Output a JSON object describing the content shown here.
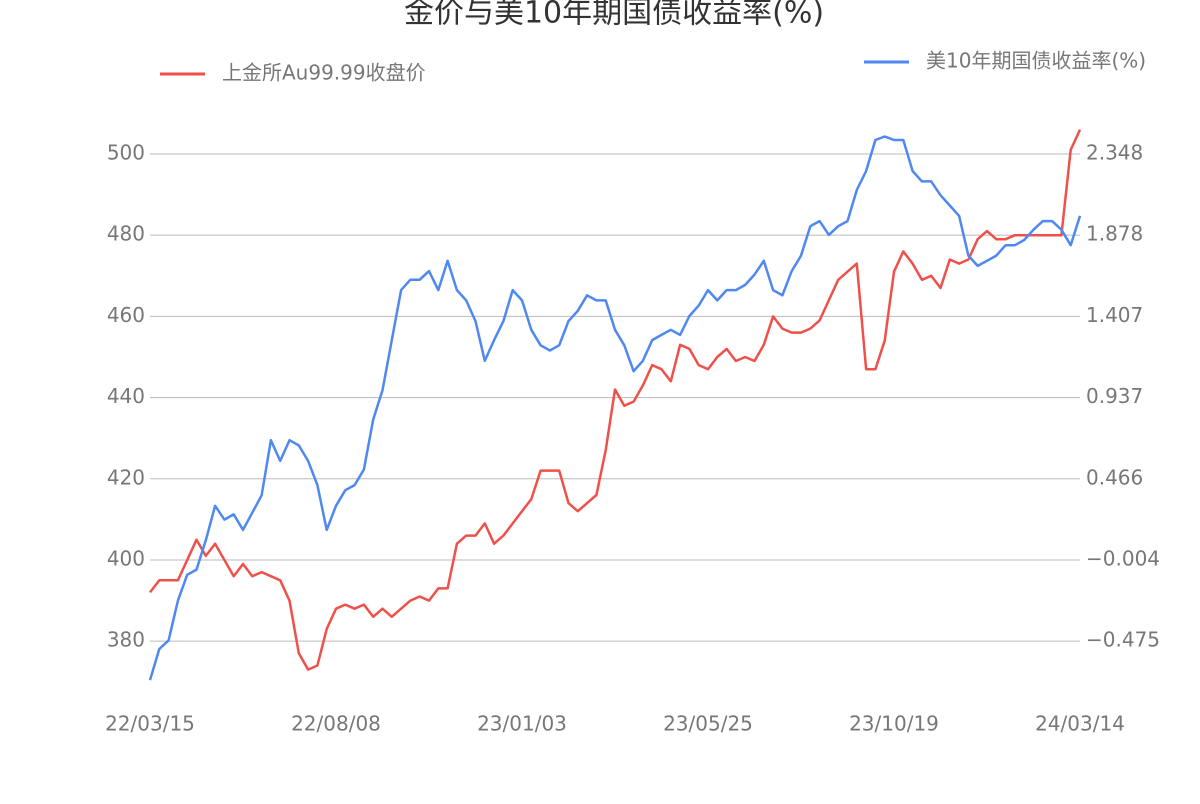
{
  "chart_data": {
    "type": "line",
    "title": "金价与美10年期国债收益率(%)",
    "categories": [
      "22/03/15",
      null,
      null,
      null,
      null,
      null,
      null,
      null,
      null,
      null,
      null,
      null,
      null,
      null,
      null,
      null,
      null,
      null,
      null,
      null,
      "22/08/08",
      null,
      null,
      null,
      null,
      null,
      null,
      null,
      null,
      null,
      null,
      null,
      null,
      null,
      null,
      null,
      null,
      null,
      null,
      null,
      "23/01/03",
      null,
      null,
      null,
      null,
      null,
      null,
      null,
      null,
      null,
      null,
      null,
      null,
      null,
      null,
      null,
      null,
      null,
      null,
      null,
      "23/05/25",
      null,
      null,
      null,
      null,
      null,
      null,
      null,
      null,
      null,
      null,
      null,
      null,
      null,
      null,
      null,
      null,
      null,
      null,
      null,
      "23/10/19",
      null,
      null,
      null,
      null,
      null,
      null,
      null,
      null,
      null,
      null,
      null,
      null,
      null,
      null,
      null,
      null,
      null,
      null,
      null,
      "24/03/14"
    ],
    "series": [
      {
        "name": "上金所Au99.99收盘价",
        "color": "#f0504a",
        "axis": "y",
        "values": [
          392,
          395,
          395,
          395,
          400,
          405,
          401,
          404,
          400,
          396,
          399,
          396,
          397,
          396,
          395,
          390,
          377,
          373,
          374,
          383,
          388,
          389,
          388,
          389,
          386,
          388,
          386,
          388,
          390,
          391,
          390,
          393,
          393,
          404,
          406,
          406,
          409,
          404,
          406,
          409,
          412,
          415,
          422,
          422,
          422,
          414,
          412,
          414,
          416,
          427,
          442,
          438,
          439,
          443,
          448,
          447,
          444,
          453,
          452,
          448,
          447,
          450,
          452,
          449,
          450,
          449,
          453,
          460,
          457,
          456,
          456,
          457,
          459,
          464,
          469,
          471,
          473,
          447,
          447,
          454,
          471,
          476,
          473,
          469,
          470,
          467,
          474,
          473,
          474,
          479,
          481,
          479,
          479,
          480,
          480,
          480,
          480,
          480,
          480,
          501,
          506
        ]
      },
      {
        "name": "美10年期国债收益率(%)",
        "color": "#4f88f0",
        "axis": "y2",
        "values": [
          -0.7,
          -0.52,
          -0.47,
          -0.24,
          -0.09,
          -0.06,
          0.11,
          0.31,
          0.23,
          0.26,
          0.17,
          0.27,
          0.37,
          0.69,
          0.57,
          0.69,
          0.66,
          0.57,
          0.43,
          0.17,
          0.31,
          0.4,
          0.43,
          0.52,
          0.81,
          0.98,
          1.27,
          1.56,
          1.62,
          1.62,
          1.67,
          1.56,
          1.73,
          1.56,
          1.5,
          1.38,
          1.15,
          1.27,
          1.38,
          1.56,
          1.5,
          1.33,
          1.24,
          1.21,
          1.24,
          1.38,
          1.44,
          1.53,
          1.5,
          1.5,
          1.33,
          1.24,
          1.09,
          1.15,
          1.27,
          1.3,
          1.33,
          1.3,
          1.41,
          1.47,
          1.56,
          1.5,
          1.56,
          1.56,
          1.59,
          1.65,
          1.73,
          1.56,
          1.53,
          1.67,
          1.76,
          1.93,
          1.96,
          1.88,
          1.93,
          1.96,
          2.14,
          2.25,
          2.43,
          2.45,
          2.43,
          2.43,
          2.25,
          2.19,
          2.19,
          2.11,
          2.05,
          1.99,
          1.76,
          1.7,
          1.73,
          1.76,
          1.82,
          1.82,
          1.85,
          1.91,
          1.96,
          1.96,
          1.91,
          1.82,
          1.99
        ]
      }
    ],
    "ylim": [
      366,
      508
    ],
    "yticks": [
      380,
      400,
      420,
      440,
      460,
      480,
      500
    ],
    "y2lim": [
      -0.804,
      2.537
    ],
    "y2ticks": [
      {
        "value": -0.475,
        "label": "−0.475"
      },
      {
        "value": -0.004,
        "label": "−0.004"
      },
      0.466,
      0.937,
      1.407,
      1.878,
      2.348
    ],
    "grid": true
  }
}
